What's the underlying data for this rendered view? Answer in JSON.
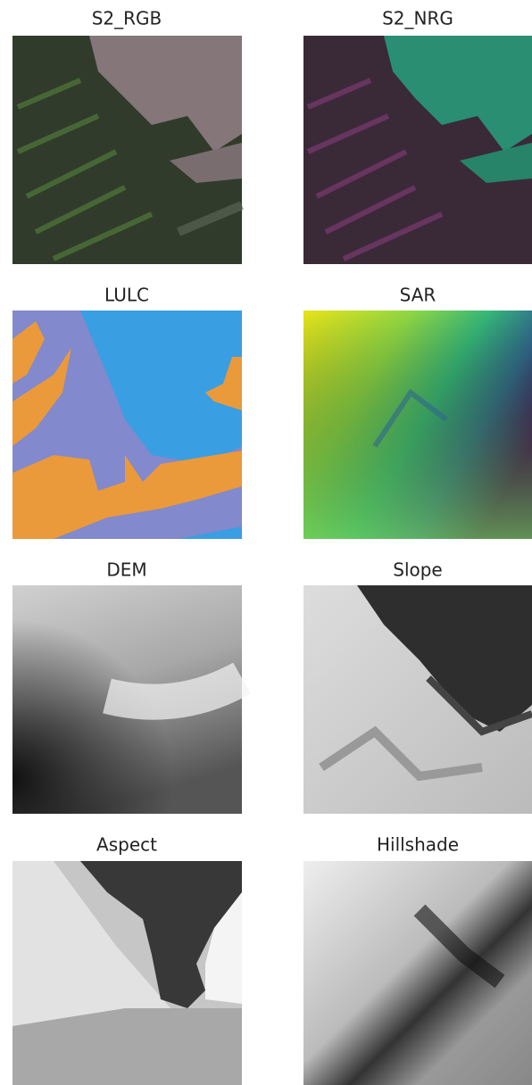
{
  "panels": [
    {
      "title": "S2_RGB"
    },
    {
      "title": "S2_NRG"
    },
    {
      "title": "LULC"
    },
    {
      "title": "SAR"
    },
    {
      "title": "DEM"
    },
    {
      "title": "Slope"
    },
    {
      "title": "Aspect"
    },
    {
      "title": "Hillshade"
    }
  ]
}
